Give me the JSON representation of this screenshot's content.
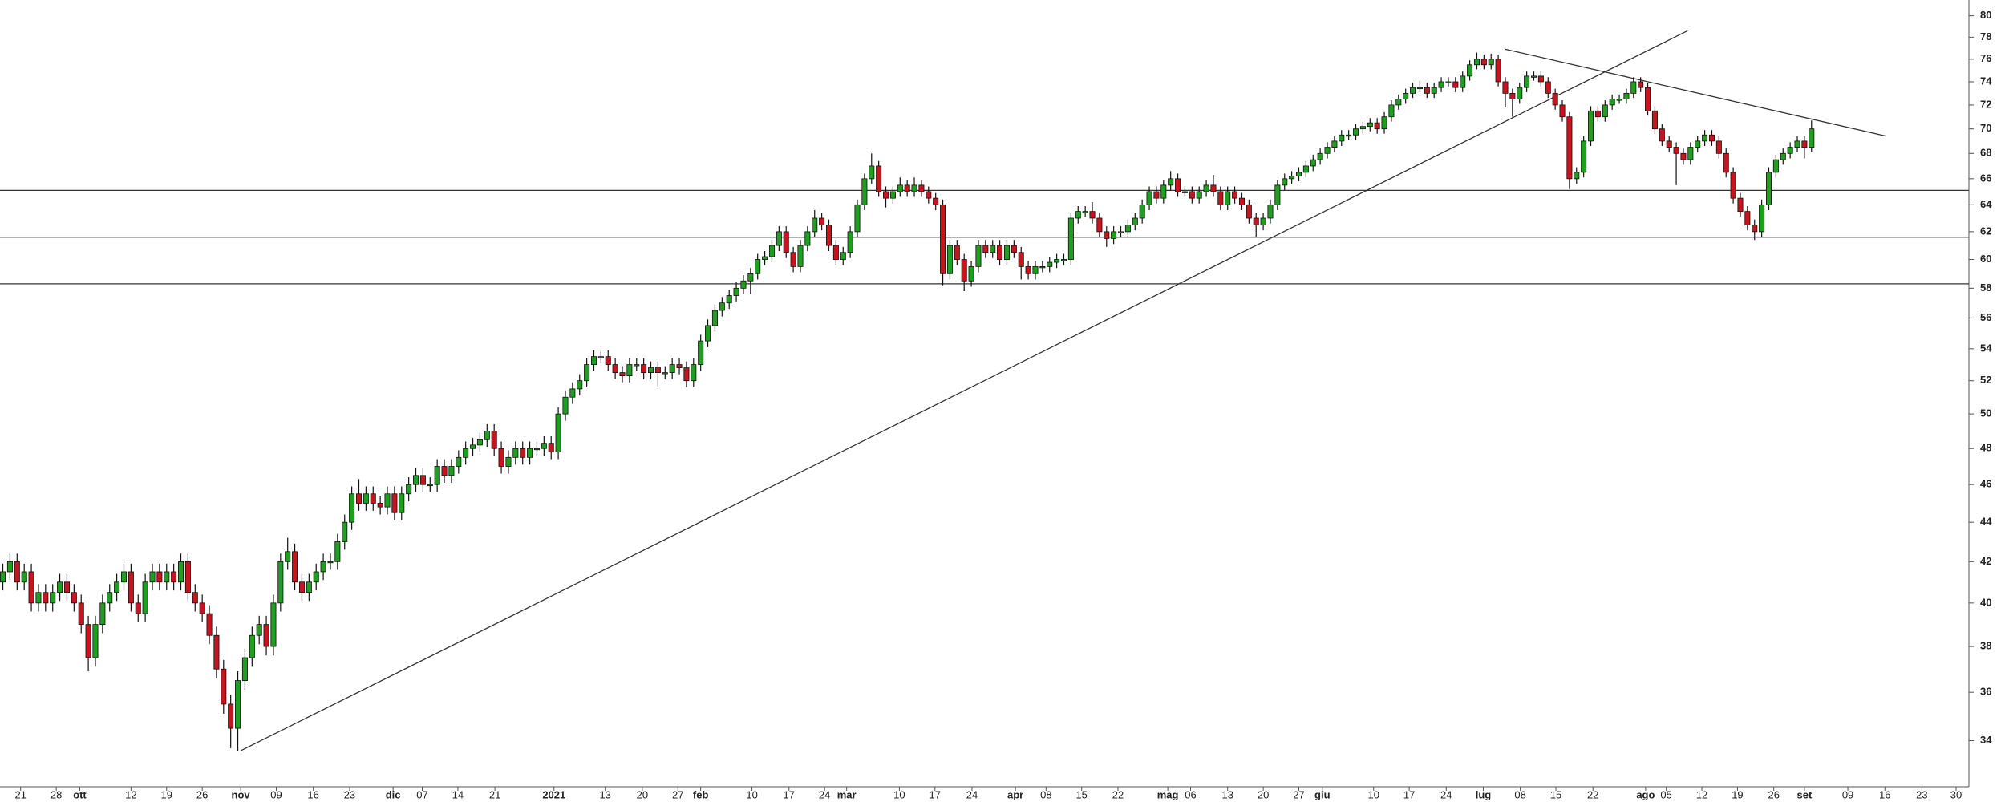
{
  "chart_data": {
    "type": "candlestick",
    "open": [
      41,
      41.5,
      42,
      41,
      41.5,
      40,
      40.5,
      40,
      40.5,
      41,
      40.5,
      40,
      39,
      37.5,
      39,
      40,
      40.5,
      41,
      41.5,
      40,
      39.5,
      41,
      41.5,
      41,
      41.5,
      41,
      42,
      40.5,
      40,
      39.5,
      38.5,
      37,
      35.5,
      34.5,
      36.5,
      37.5,
      38.5,
      39,
      38,
      40,
      42,
      42.5,
      41,
      40.5,
      41,
      41.5,
      42,
      42,
      43,
      44,
      45.5,
      45,
      45.5,
      45,
      44.8,
      45.5,
      44.5,
      45.5,
      46,
      46.5,
      46,
      46,
      47,
      46.5,
      47,
      47.5,
      48,
      48.2,
      48.5,
      49,
      48,
      47,
      47.5,
      48,
      47.5,
      48,
      48,
      48.3,
      47.8,
      50,
      51,
      51.5,
      52,
      53,
      53.5,
      53.5,
      53,
      52.5,
      52.3,
      53,
      53,
      52.5,
      52.8,
      52.5,
      52.5,
      53,
      52.8,
      52,
      53,
      54.5,
      55.5,
      56.5,
      57,
      57.5,
      58,
      58.5,
      59,
      60,
      60.2,
      61,
      62,
      60.5,
      59.5,
      61,
      62,
      63,
      62.5,
      61,
      60,
      60.5,
      62,
      64,
      66,
      67,
      65,
      64.5,
      65,
      65.5,
      65,
      65.5,
      65,
      64.5,
      64,
      59,
      61,
      60,
      58.5,
      59.5,
      61,
      60.5,
      61,
      60,
      61,
      60.5,
      59.5,
      59,
      59.5,
      59.5,
      59.8,
      60,
      60,
      63,
      63.5,
      63.5,
      63,
      62,
      61.5,
      62,
      62,
      62.5,
      63,
      64,
      65,
      64.5,
      65.5,
      66,
      65,
      65,
      64.5,
      65,
      65.5,
      65,
      64,
      65,
      64.5,
      64,
      63,
      62.5,
      63,
      64,
      65.5,
      66,
      66.2,
      66.5,
      67,
      67.5,
      68,
      68.5,
      69,
      69.5,
      69.5,
      70,
      70.2,
      70.5,
      70,
      71,
      72,
      72.5,
      73,
      73.5,
      73.5,
      73,
      73.5,
      74,
      74,
      73.5,
      74.5,
      75.5,
      76,
      75.5,
      76,
      74,
      73,
      72.5,
      73.5,
      74.5,
      74.5,
      74,
      73,
      72,
      71,
      66,
      66.5,
      69,
      71.5,
      71,
      72,
      72.5,
      72.5,
      73,
      74,
      73.5,
      71.5,
      70,
      69,
      68.5,
      68,
      67.5,
      68.5,
      69,
      69.5,
      69,
      68,
      66.5,
      64.5,
      63.5,
      62.5,
      62,
      64,
      66.5,
      67.5,
      68,
      68.5,
      69,
      68.5
    ],
    "high": [
      41.9,
      42.4,
      42.4,
      41.9,
      41.9,
      40.9,
      40.9,
      40.9,
      41.4,
      41.4,
      40.9,
      40.4,
      39.4,
      39.4,
      40.4,
      40.9,
      41.4,
      41.9,
      41.9,
      40.4,
      41.4,
      41.9,
      41.9,
      41.9,
      41.9,
      42.4,
      42.4,
      40.9,
      40.4,
      39.9,
      38.9,
      37.4,
      35.9,
      36.9,
      37.9,
      38.9,
      39.4,
      39.4,
      40.4,
      42.4,
      43.2,
      42.9,
      41.4,
      41.4,
      41.9,
      42.4,
      42.4,
      43.4,
      44.4,
      45.9,
      46.3,
      45.9,
      45.9,
      45.4,
      45.9,
      45.9,
      45.9,
      46.4,
      46.9,
      46.9,
      46.4,
      47.4,
      47.4,
      47.4,
      47.9,
      48.4,
      48.6,
      48.9,
      49.4,
      49.4,
      48.4,
      47.9,
      48.4,
      48.4,
      48.4,
      48.4,
      48.7,
      48.7,
      50.4,
      51.4,
      51.9,
      52.4,
      53.4,
      53.9,
      53.9,
      53.9,
      53.4,
      52.9,
      53.4,
      53.4,
      53.4,
      53.2,
      53.2,
      52.9,
      53.4,
      53.4,
      53.2,
      53.4,
      54.9,
      55.9,
      56.9,
      57.4,
      57.9,
      58.4,
      58.9,
      59.4,
      60.4,
      60.6,
      61.4,
      62.4,
      62.4,
      60.9,
      61.4,
      62.4,
      63.6,
      63.4,
      62.9,
      61.4,
      60.9,
      62.4,
      64.4,
      66.4,
      68,
      67.4,
      65.4,
      65.4,
      66.1,
      65.9,
      66.1,
      65.9,
      65.4,
      64.9,
      64.4,
      61.4,
      61.4,
      60.4,
      59.9,
      61.4,
      61.4,
      61.4,
      61.4,
      61.4,
      61.4,
      60.9,
      59.9,
      59.9,
      59.9,
      60.2,
      60.4,
      60.4,
      63.4,
      63.9,
      63.9,
      64.2,
      63.4,
      62.4,
      62.4,
      62.4,
      62.9,
      63.4,
      64.4,
      65.4,
      65.4,
      65.9,
      66.6,
      66.4,
      65.4,
      65.4,
      65.4,
      65.9,
      66.3,
      65.4,
      65.4,
      65.4,
      64.9,
      64.4,
      63.4,
      63.4,
      64.4,
      65.9,
      66.4,
      66.6,
      66.9,
      67.4,
      67.9,
      68.4,
      68.9,
      69.4,
      69.9,
      69.9,
      70.4,
      70.6,
      70.9,
      70.9,
      71.4,
      72.4,
      72.9,
      73.4,
      73.9,
      74.1,
      73.9,
      73.9,
      74.4,
      74.4,
      74.4,
      74.9,
      75.9,
      76.6,
      76.4,
      76.5,
      76.4,
      74.4,
      73.4,
      73.9,
      74.9,
      74.9,
      74.9,
      74.4,
      73.4,
      72.4,
      71.4,
      66.9,
      69.4,
      71.9,
      71.9,
      72.4,
      72.9,
      72.9,
      73.4,
      74.4,
      74.4,
      73.9,
      71.9,
      70.4,
      69.4,
      68.9,
      68.4,
      68.9,
      69.4,
      69.9,
      69.9,
      69.4,
      68.4,
      66.9,
      64.9,
      63.9,
      62.9,
      64.4,
      66.9,
      67.9,
      68.4,
      68.9,
      69.4,
      69.4,
      70.7
    ],
    "low": [
      40.6,
      41.1,
      40.6,
      40.6,
      39.6,
      39.6,
      39.6,
      39.6,
      40.1,
      40.1,
      39.6,
      38.6,
      36.9,
      37.1,
      38.6,
      39.6,
      40.1,
      40.6,
      39.6,
      39.1,
      39.1,
      40.6,
      40.6,
      40.6,
      40.6,
      40.6,
      40.1,
      39.6,
      39.1,
      38.1,
      36.6,
      35.1,
      33.7,
      33.6,
      36.1,
      37.1,
      38.1,
      37.6,
      37.6,
      39.6,
      41.6,
      40.6,
      40.1,
      40.1,
      40.6,
      41.1,
      41.6,
      41.6,
      42.6,
      43.6,
      44.6,
      44.6,
      44.6,
      44.4,
      44.4,
      44.1,
      44.1,
      45.1,
      45.6,
      45.6,
      45.6,
      45.6,
      46.1,
      46.1,
      46.6,
      47.1,
      47.6,
      47.8,
      48.1,
      47.6,
      46.6,
      46.6,
      47.1,
      47.1,
      47.1,
      47.6,
      47.6,
      47.4,
      47.4,
      49.6,
      50.6,
      51.1,
      51.6,
      52.6,
      53.1,
      52.6,
      52.1,
      51.9,
      51.9,
      52.6,
      52.1,
      52.1,
      51.6,
      52.1,
      52.1,
      52.4,
      51.6,
      51.6,
      52.6,
      54.1,
      55.1,
      56.1,
      56.6,
      57.1,
      57.6,
      57.6,
      58.6,
      59.6,
      59.8,
      60.6,
      60.1,
      59.1,
      59.1,
      60.6,
      61.6,
      62.1,
      60.6,
      59.6,
      59.6,
      60.1,
      61.6,
      63.6,
      65.6,
      64.6,
      63.8,
      64.1,
      64.6,
      64.6,
      64.6,
      64.6,
      64.1,
      63.6,
      58.2,
      58.6,
      59.6,
      57.8,
      58.1,
      59.1,
      60.1,
      60.1,
      59.6,
      59.6,
      60.1,
      58.6,
      58.6,
      58.6,
      59.1,
      59.1,
      59.4,
      59.6,
      59.6,
      62.6,
      63.1,
      62.6,
      61.6,
      60.9,
      61.1,
      61.6,
      61.6,
      62.1,
      62.6,
      63.6,
      64.1,
      64.1,
      65.1,
      64.6,
      64.6,
      64.1,
      64.1,
      64.6,
      64.6,
      63.6,
      63.6,
      64.1,
      63.6,
      62.6,
      61.6,
      62.1,
      62.6,
      63.6,
      65.1,
      65.6,
      65.8,
      66.1,
      66.6,
      67.1,
      67.6,
      68.1,
      68.6,
      69.1,
      69.1,
      69.6,
      69.8,
      69.6,
      69.6,
      70.6,
      71.6,
      72.1,
      72.6,
      73.1,
      72.6,
      72.6,
      73.1,
      73.6,
      73.1,
      73.1,
      74.1,
      75.1,
      75.1,
      75.1,
      73.6,
      71.8,
      71,
      72.1,
      73.1,
      74.1,
      73.6,
      72.6,
      71.6,
      70.6,
      65.2,
      65.6,
      66.1,
      68.6,
      70.6,
      70.6,
      71.6,
      72.1,
      72.1,
      72.6,
      73.1,
      71.1,
      69.6,
      68.6,
      68.1,
      65.5,
      67.1,
      67.1,
      68.1,
      68.6,
      68.6,
      67.6,
      66.1,
      64.1,
      63.1,
      62.1,
      61.4,
      61.6,
      63.6,
      66.1,
      67.1,
      67.6,
      68.1,
      67.6,
      68.1
    ],
    "close": [
      41.5,
      42,
      41,
      41.5,
      40,
      40.5,
      40,
      40.5,
      41,
      40.5,
      40,
      39,
      37.5,
      39,
      40,
      40.5,
      41,
      41.5,
      40,
      39.5,
      41,
      41.5,
      41,
      41.5,
      41,
      42,
      40.5,
      40,
      39.5,
      38.5,
      37,
      35.5,
      34.5,
      36.5,
      37.5,
      38.5,
      39,
      38,
      40,
      42,
      42.5,
      41,
      40.5,
      41,
      41.5,
      42,
      42,
      43,
      44,
      45.5,
      45,
      45.5,
      45,
      44.8,
      45.5,
      44.5,
      45.5,
      46,
      46.5,
      46,
      46,
      47,
      46.5,
      47,
      47.5,
      48,
      48.2,
      48.5,
      49,
      48,
      47,
      47.5,
      48,
      47.5,
      48,
      48,
      48.3,
      47.8,
      50,
      51,
      51.5,
      52,
      53,
      53.5,
      53.5,
      53,
      52.5,
      52.3,
      53,
      53,
      52.5,
      52.8,
      52.5,
      52.5,
      53,
      52.8,
      52,
      53,
      54.5,
      55.5,
      56.5,
      57,
      57.5,
      58,
      58.5,
      59,
      60,
      60.2,
      61,
      62,
      60.5,
      59.5,
      61,
      62,
      63,
      62.5,
      61,
      60,
      60.5,
      62,
      64,
      66,
      67,
      65,
      64.5,
      65,
      65.5,
      65,
      65.5,
      65,
      64.5,
      64,
      59,
      61,
      60,
      58.5,
      59.5,
      61,
      60.5,
      61,
      60,
      61,
      60.5,
      59.5,
      59,
      59.5,
      59.5,
      59.8,
      60,
      60,
      63,
      63.5,
      63.5,
      63,
      62,
      61.5,
      62,
      62,
      62.5,
      63,
      64,
      65,
      64.5,
      65.5,
      66,
      65,
      65,
      64.5,
      65,
      65.5,
      65,
      64,
      65,
      64.5,
      64,
      63,
      62.5,
      63,
      64,
      65.5,
      66,
      66.2,
      66.5,
      67,
      67.5,
      68,
      68.5,
      69,
      69.5,
      69.5,
      70,
      70.2,
      70.5,
      70,
      71,
      72,
      72.5,
      73,
      73.5,
      73.5,
      73,
      73.5,
      74,
      74,
      73.5,
      74.5,
      75.5,
      76,
      75.5,
      76,
      74,
      73,
      72.5,
      73.5,
      74.5,
      74.5,
      74,
      73,
      72,
      71,
      66,
      66.5,
      69,
      71.5,
      71,
      72,
      72.5,
      72.5,
      73,
      74,
      73.5,
      71.5,
      70,
      69,
      68.5,
      68,
      67.5,
      68.5,
      69,
      69.5,
      69,
      68,
      66.5,
      64.5,
      63.5,
      62.5,
      62,
      64,
      66.5,
      67.5,
      68,
      68.5,
      69,
      68.5,
      70
    ],
    "up_color": "#1f9e1f",
    "down_color": "#c8141e",
    "xlim": [
      -0.4,
      276.1
    ],
    "xticks": [
      {
        "value": 2.5,
        "label": "21"
      },
      {
        "value": 7.5,
        "label": "28"
      },
      {
        "value": 10.8,
        "label": "ott"
      },
      {
        "value": 18,
        "label": "12"
      },
      {
        "value": 23,
        "label": "19"
      },
      {
        "value": 28,
        "label": "26"
      },
      {
        "value": 33.4,
        "label": "nov"
      },
      {
        "value": 38.4,
        "label": "09"
      },
      {
        "value": 43.6,
        "label": "16"
      },
      {
        "value": 48.7,
        "label": "23"
      },
      {
        "value": 54.8,
        "label": "dic"
      },
      {
        "value": 58.9,
        "label": "07"
      },
      {
        "value": 63.9,
        "label": "14"
      },
      {
        "value": 69.1,
        "label": "21"
      },
      {
        "value": 77.4,
        "label": "2021"
      },
      {
        "value": 84.6,
        "label": "13"
      },
      {
        "value": 89.8,
        "label": "20"
      },
      {
        "value": 94.8,
        "label": "27"
      },
      {
        "value": 98,
        "label": "feb"
      },
      {
        "value": 105.2,
        "label": "10"
      },
      {
        "value": 110.4,
        "label": "17"
      },
      {
        "value": 115.4,
        "label": "24"
      },
      {
        "value": 118.5,
        "label": "mar"
      },
      {
        "value": 125.9,
        "label": "10"
      },
      {
        "value": 130.9,
        "label": "17"
      },
      {
        "value": 136.1,
        "label": "24"
      },
      {
        "value": 142.2,
        "label": "apr"
      },
      {
        "value": 146.5,
        "label": "08"
      },
      {
        "value": 151.5,
        "label": "15"
      },
      {
        "value": 156.6,
        "label": "22"
      },
      {
        "value": 163.6,
        "label": "mag"
      },
      {
        "value": 166.8,
        "label": "06"
      },
      {
        "value": 172,
        "label": "13"
      },
      {
        "value": 177,
        "label": "20"
      },
      {
        "value": 182,
        "label": "27"
      },
      {
        "value": 185.3,
        "label": "giu"
      },
      {
        "value": 192.5,
        "label": "10"
      },
      {
        "value": 197.5,
        "label": "17"
      },
      {
        "value": 202.7,
        "label": "24"
      },
      {
        "value": 207.9,
        "label": "lug"
      },
      {
        "value": 213.1,
        "label": "08"
      },
      {
        "value": 218.1,
        "label": "15"
      },
      {
        "value": 223.3,
        "label": "22"
      },
      {
        "value": 230.7,
        "label": "ago"
      },
      {
        "value": 233.6,
        "label": "05"
      },
      {
        "value": 238.6,
        "label": "12"
      },
      {
        "value": 243.6,
        "label": "19"
      },
      {
        "value": 248.7,
        "label": "26"
      },
      {
        "value": 253,
        "label": "set"
      },
      {
        "value": 259.1,
        "label": "09"
      },
      {
        "value": 264.3,
        "label": "16"
      },
      {
        "value": 269.5,
        "label": "23"
      },
      {
        "value": 274.3,
        "label": "30"
      }
    ],
    "ylim": [
      32.2,
      81.5
    ],
    "yticks": [
      34,
      36,
      38,
      40,
      42,
      44,
      46,
      48,
      50,
      52,
      54,
      56,
      58,
      60,
      62,
      64,
      66,
      68,
      70,
      72,
      74,
      76,
      78,
      80
    ],
    "log_y": true,
    "hlines": [
      65.1,
      61.6,
      58.3
    ],
    "trendlines": [
      {
        "x": [
          33.4,
          236.6
        ],
        "y": [
          33.6,
          78.6
        ]
      },
      {
        "x": [
          211,
          264.5
        ],
        "y": [
          76.9,
          69.4
        ]
      }
    ]
  }
}
